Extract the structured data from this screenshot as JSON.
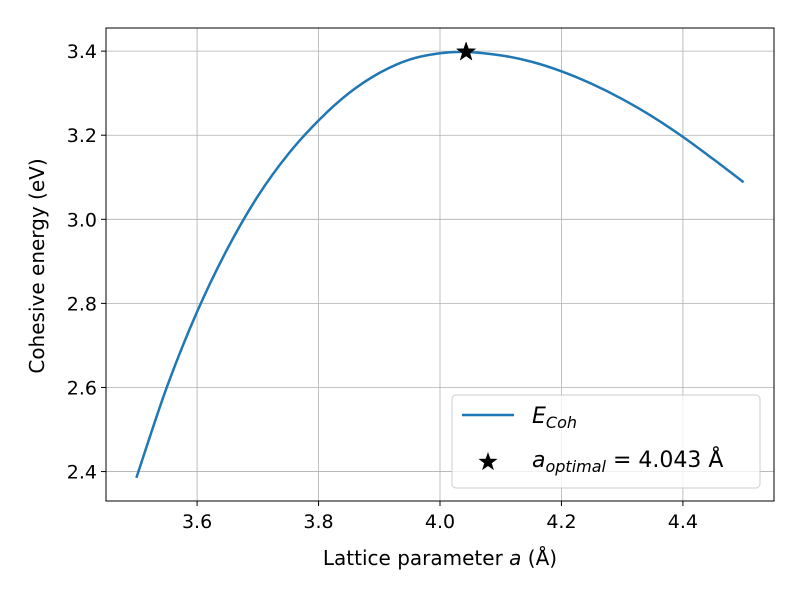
{
  "chart_data": {
    "type": "line",
    "title": "",
    "xlabel_prefix": "Lattice parameter ",
    "xlabel_var": "a",
    "xlabel_suffix": " (Å)",
    "ylabel": "Cohesive energy (eV)",
    "xlim": [
      3.45,
      4.55
    ],
    "ylim": [
      2.33,
      3.455
    ],
    "xticks": [
      3.6,
      3.8,
      4.0,
      4.2,
      4.4
    ],
    "xtick_labels": [
      "3.6",
      "3.8",
      "4.0",
      "4.2",
      "4.4"
    ],
    "yticks": [
      2.4,
      2.6,
      2.8,
      3.0,
      3.2,
      3.4
    ],
    "ytick_labels": [
      "2.4",
      "2.6",
      "2.8",
      "3.0",
      "3.2",
      "3.4"
    ],
    "grid": true,
    "legend_position": "lower-right",
    "series": [
      {
        "name": "E_Coh",
        "legend_main": "E",
        "legend_sub": "Coh",
        "color": "#1f77b4",
        "x": [
          3.5,
          3.55,
          3.6,
          3.65,
          3.7,
          3.75,
          3.8,
          3.85,
          3.9,
          3.95,
          4.0,
          4.043,
          4.1,
          4.15,
          4.2,
          4.25,
          4.3,
          4.35,
          4.4,
          4.45,
          4.5
        ],
        "y": [
          2.385,
          2.6,
          2.78,
          2.93,
          3.055,
          3.155,
          3.235,
          3.3,
          3.348,
          3.38,
          3.395,
          3.398,
          3.39,
          3.375,
          3.352,
          3.322,
          3.286,
          3.244,
          3.196,
          3.143,
          3.088
        ]
      }
    ],
    "markers": [
      {
        "name": "a_optimal",
        "legend_main": "a",
        "legend_sub": "optimal",
        "legend_value": " = 4.043 Å",
        "symbol": "star",
        "color": "#000000",
        "x": 4.043,
        "y": 3.398
      }
    ]
  }
}
